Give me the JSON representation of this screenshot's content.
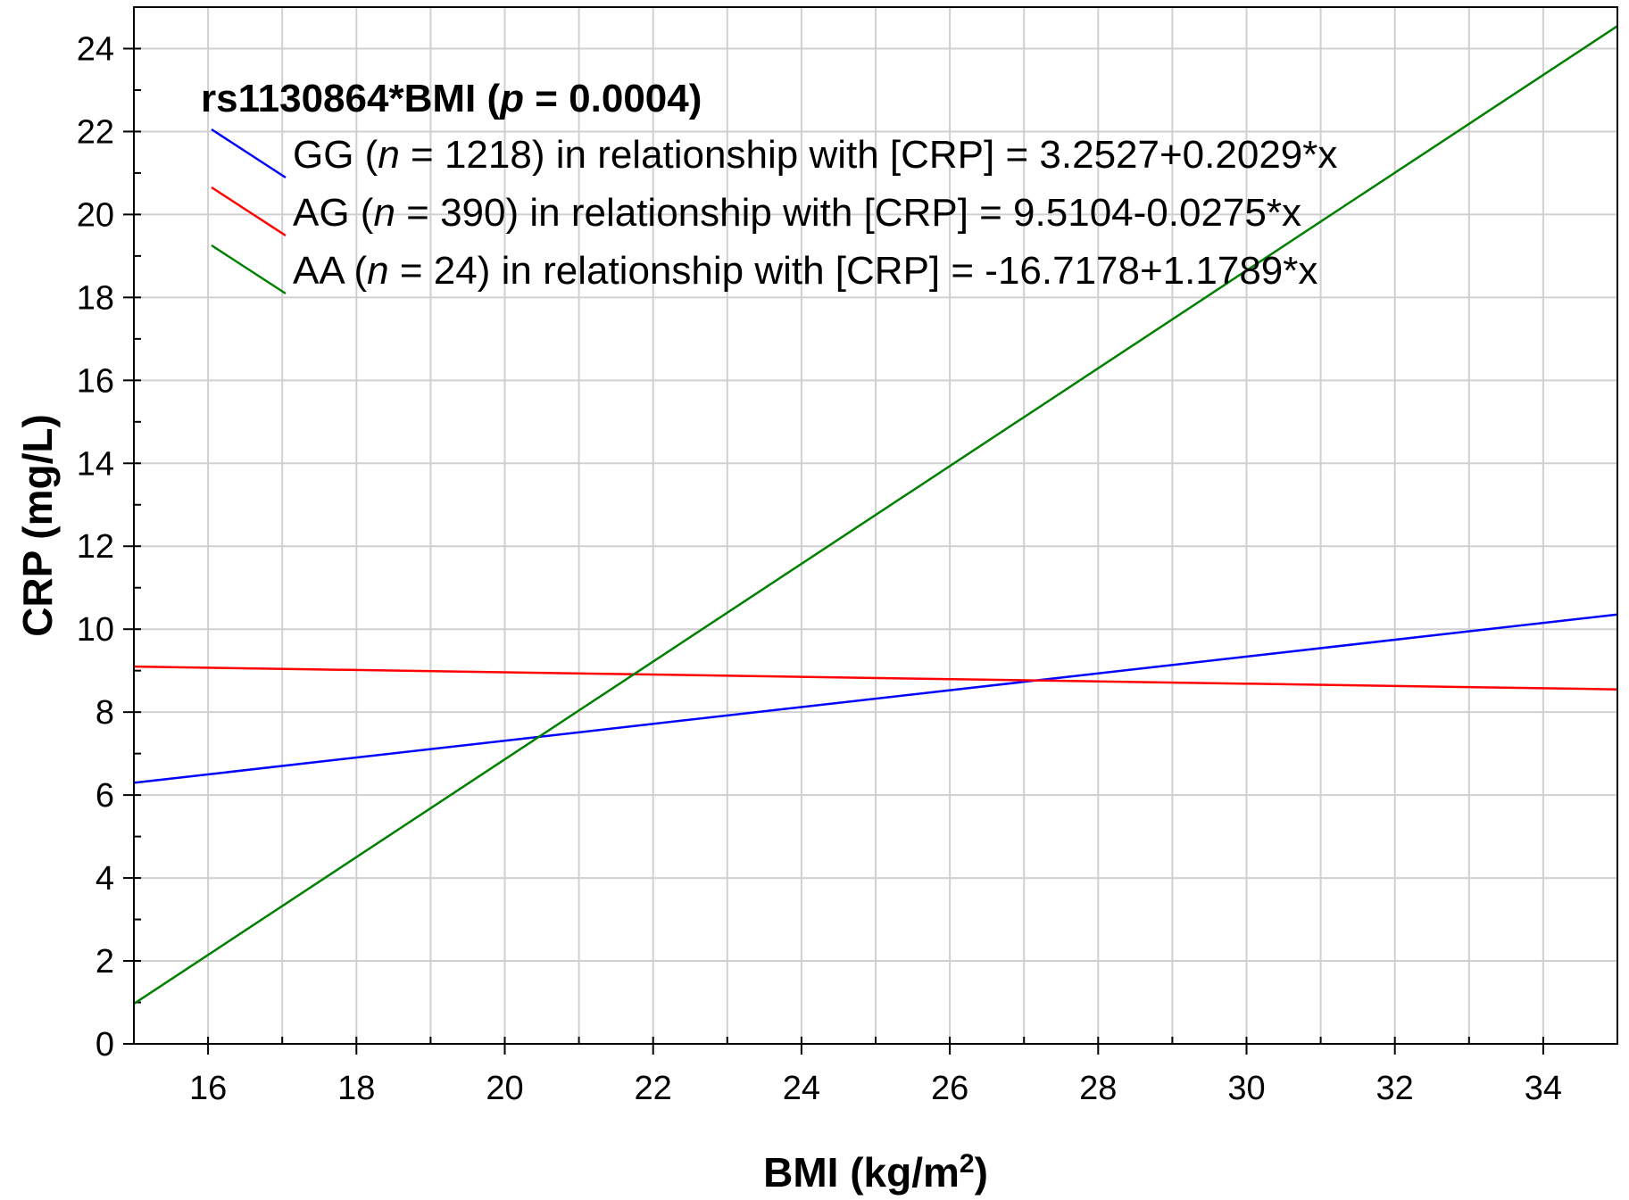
{
  "chart_data": {
    "type": "line",
    "xlabel": "BMI (kg/m",
    "xlabel_superscript": "2",
    "xlabel_suffix": ")",
    "ylabel": "CRP (mg/L)",
    "xlim": [
      15,
      35
    ],
    "ylim": [
      0,
      25
    ],
    "x_ticks": [
      16,
      18,
      20,
      22,
      24,
      26,
      28,
      30,
      32,
      34
    ],
    "y_ticks": [
      0,
      2,
      4,
      6,
      8,
      10,
      12,
      14,
      16,
      18,
      20,
      22,
      24
    ],
    "grid": true,
    "legend_position": "top-left",
    "legend": {
      "title_prefix": "rs1130864*BMI (",
      "title_italic": "p",
      "title_suffix": " = 0.0004)"
    },
    "series": [
      {
        "genotype": "GG",
        "n_label": "n",
        "n_text": " = 1218) in relationship with [CRP] = 3.2527+0.2029*x",
        "color": "#0000ff",
        "x": [
          15,
          35
        ],
        "y": [
          6.296,
          10.354
        ]
      },
      {
        "genotype": "AG",
        "n_label": "n",
        "n_text": " = 390) in relationship with [CRP] = 9.5104-0.0275*x",
        "color": "#ff0000",
        "x": [
          15,
          35
        ],
        "y": [
          9.098,
          8.548
        ]
      },
      {
        "genotype": "AA",
        "n_label": "n",
        "n_text": " = 24) in relationship with [CRP] = -16.7178+1.1789*x",
        "color": "#008000",
        "x": [
          15,
          35
        ],
        "y": [
          0.966,
          24.544
        ]
      }
    ]
  }
}
